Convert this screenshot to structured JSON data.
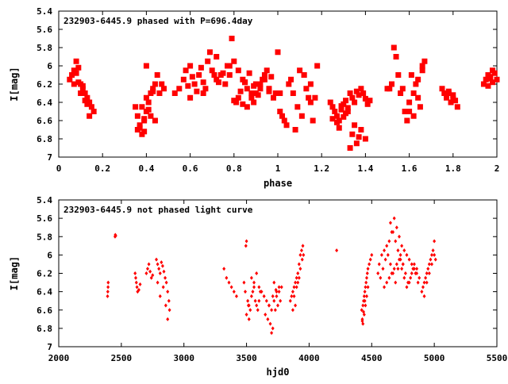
{
  "chart_data": [
    {
      "type": "scatter",
      "title": "232903-6445.9 phased with P=696.4day",
      "xlabel": "phase",
      "ylabel": "I[mag]",
      "xlim": [
        0,
        2
      ],
      "ylim": [
        7,
        5.4
      ],
      "y_inverted": true,
      "xticks": [
        0,
        0.2,
        0.4,
        0.6,
        0.8,
        1,
        1.2,
        1.4,
        1.6,
        1.8,
        2
      ],
      "xtick_labels": [
        "0",
        "0.2",
        "0.4",
        "0.6",
        "0.8",
        "1",
        "1.2",
        "1.4",
        "1.6",
        "1.8",
        "2"
      ],
      "yticks": [
        5.4,
        5.6,
        5.8,
        6,
        6.2,
        6.4,
        6.6,
        6.8,
        7
      ],
      "ytick_labels": [
        "5.4",
        "5.6",
        "5.8",
        "6",
        "6.2",
        "6.4",
        "6.6",
        "6.8",
        "7"
      ],
      "grid": false,
      "marker_color": "#ff0000",
      "marker": "filled-square",
      "series": [
        {
          "x": [
            0.05,
            0.06,
            0.07,
            0.08,
            0.09,
            0.1,
            0.11,
            0.12,
            0.13,
            0.14,
            0.15,
            0.16,
            0.08,
            0.1,
            0.12,
            0.14,
            0.07,
            0.09,
            0.11,
            0.13,
            0.35,
            0.36,
            0.37,
            0.38,
            0.39,
            0.4,
            0.41,
            0.42,
            0.43,
            0.44,
            0.45,
            0.36,
            0.38,
            0.4,
            0.42,
            0.44,
            0.37,
            0.39,
            0.41,
            0.43,
            0.4,
            0.46,
            0.47,
            0.48,
            0.39,
            0.53,
            0.55,
            0.57,
            0.58,
            0.6,
            0.62,
            0.64,
            0.66,
            0.68,
            0.7,
            0.72,
            0.74,
            0.76,
            0.78,
            0.6,
            0.63,
            0.66,
            0.69,
            0.72,
            0.75,
            0.59,
            0.61,
            0.65,
            0.67,
            0.71,
            0.73,
            0.77,
            0.8,
            0.82,
            0.84,
            0.86,
            0.88,
            0.9,
            0.92,
            0.94,
            0.96,
            0.98,
            0.81,
            0.83,
            0.85,
            0.87,
            0.89,
            0.91,
            0.93,
            0.95,
            0.97,
            0.79,
            0.8,
            0.84,
            0.88,
            0.92,
            0.78,
            0.82,
            0.86,
            0.9,
            0.94,
            0.99,
            0.96,
            0.85,
            0.89,
            1.0,
            1.01,
            1.02,
            1.03,
            1.05,
            1.07,
            1.09,
            1.1,
            1.12,
            1.13,
            1.14,
            1.15,
            1.16,
            1.04,
            1.08,
            1.11,
            1.06,
            1.01,
            1.15,
            1.17,
            1.18,
            1.12,
            1.24,
            1.25,
            1.26,
            1.27,
            1.28,
            1.29,
            1.3,
            1.31,
            1.32,
            1.25,
            1.27,
            1.29,
            1.31,
            1.33,
            1.34,
            1.35,
            1.36,
            1.37,
            1.38,
            1.39,
            1.4,
            1.41,
            1.42,
            1.34,
            1.36,
            1.38,
            1.4,
            1.33,
            1.35,
            1.37,
            1.28,
            1.3,
            1.32,
            1.5,
            1.52,
            1.53,
            1.54,
            1.55,
            1.56,
            1.58,
            1.6,
            1.62,
            1.63,
            1.64,
            1.65,
            1.66,
            1.67,
            1.6,
            1.62,
            1.64,
            1.59,
            1.61,
            1.57,
            1.51,
            1.66,
            1.75,
            1.76,
            1.77,
            1.78,
            1.79,
            1.8,
            1.81,
            1.82,
            1.78,
            1.8,
            1.94,
            1.95,
            1.96,
            1.97,
            1.98,
            1.99,
            2.0,
            1.96,
            1.98,
            1.97
          ],
          "y": [
            6.15,
            6.1,
            6.05,
            6.08,
            6.02,
            6.2,
            6.25,
            6.3,
            6.35,
            6.4,
            6.45,
            6.5,
            5.95,
            6.3,
            6.38,
            6.55,
            6.2,
            6.18,
            6.22,
            6.42,
            6.45,
            6.55,
            6.65,
            6.75,
            6.6,
            6.5,
            6.4,
            6.3,
            6.25,
            6.2,
            6.1,
            6.7,
            6.45,
            6.35,
            6.55,
            6.6,
            6.68,
            6.58,
            6.48,
            6.28,
            6.0,
            6.3,
            6.2,
            6.25,
            6.72,
            6.3,
            6.25,
            6.15,
            6.05,
            6.0,
            6.2,
            6.1,
            6.3,
            5.95,
            6.05,
            5.9,
            6.1,
            6.2,
            6.0,
            6.35,
            6.28,
            6.18,
            5.85,
            6.15,
            6.08,
            6.22,
            6.12,
            6.02,
            6.25,
            6.1,
            6.18,
            6.0,
            5.95,
            6.05,
            6.15,
            6.25,
            6.35,
            6.3,
            6.2,
            6.1,
            6.25,
            6.35,
            6.4,
            6.28,
            6.18,
            6.08,
            6.22,
            6.32,
            6.15,
            6.05,
            6.12,
            5.7,
            6.38,
            6.42,
            6.3,
            6.25,
            6.1,
            6.35,
            6.45,
            6.2,
            6.15,
            6.3,
            6.28,
            6.18,
            6.4,
            5.85,
            6.5,
            6.55,
            6.6,
            6.2,
            6.3,
            6.45,
            6.05,
            6.1,
            6.25,
            6.35,
            6.4,
            6.6,
            6.65,
            6.7,
            6.55,
            6.15,
            6.3,
            6.2,
            6.35,
            6.0,
            6.1,
            6.4,
            6.45,
            6.5,
            6.55,
            6.6,
            6.48,
            6.42,
            6.52,
            6.46,
            6.58,
            6.62,
            6.44,
            6.38,
            6.3,
            6.35,
            6.4,
            6.28,
            6.32,
            6.25,
            6.3,
            6.36,
            6.42,
            6.38,
            6.75,
            6.85,
            6.7,
            6.8,
            6.9,
            6.65,
            6.78,
            6.68,
            6.56,
            6.5,
            6.25,
            6.2,
            5.8,
            5.9,
            6.1,
            6.3,
            6.5,
            6.4,
            6.3,
            6.2,
            6.35,
            6.45,
            6.0,
            5.95,
            6.5,
            6.55,
            6.15,
            6.6,
            6.1,
            6.25,
            6.25,
            6.05,
            6.25,
            6.3,
            6.35,
            6.28,
            6.4,
            6.32,
            6.38,
            6.45,
            6.3,
            6.36,
            6.2,
            6.15,
            6.1,
            6.12,
            6.18,
            6.08,
            6.15,
            6.22,
            6.05,
            6.14
          ]
        }
      ]
    },
    {
      "type": "scatter",
      "title": "232903-6445.9 not phased light curve",
      "xlabel": "hjd0",
      "ylabel": "I[mag]",
      "xlim": [
        2000,
        5500
      ],
      "ylim": [
        7,
        5.4
      ],
      "y_inverted": true,
      "xticks": [
        2000,
        2500,
        3000,
        3500,
        4000,
        4500,
        5000,
        5500
      ],
      "xtick_labels": [
        "2000",
        "2500",
        "3000",
        "3500",
        "4000",
        "4500",
        "5000",
        "5500"
      ],
      "yticks": [
        5.4,
        5.6,
        5.8,
        6,
        6.2,
        6.4,
        6.6,
        6.8,
        7
      ],
      "ytick_labels": [
        "5.4",
        "5.6",
        "5.8",
        "6",
        "6.2",
        "6.4",
        "6.6",
        "6.8",
        "7"
      ],
      "grid": false,
      "marker_color": "#ff0000",
      "marker": "small-diamond",
      "series": [
        {
          "x": [
            2390,
            2392,
            2394,
            2395,
            2450,
            2452,
            2455,
            2610,
            2615,
            2620,
            2625,
            2630,
            2640,
            2650,
            2700,
            2710,
            2720,
            2730,
            2740,
            2750,
            2780,
            2790,
            2800,
            2810,
            2820,
            2830,
            2840,
            2850,
            2860,
            2870,
            2880,
            2885,
            2790,
            2810,
            2835,
            2855,
            2870,
            3320,
            3340,
            3360,
            3380,
            3400,
            3420,
            3480,
            3490,
            3500,
            3510,
            3520,
            3530,
            3540,
            3550,
            3560,
            3570,
            3580,
            3590,
            3600,
            3610,
            3500,
            3520,
            3540,
            3560,
            3580,
            3600,
            3495,
            3515,
            3620,
            3640,
            3660,
            3680,
            3700,
            3720,
            3740,
            3760,
            3780,
            3650,
            3670,
            3690,
            3710,
            3730,
            3750,
            3770,
            3700,
            3720,
            3740,
            3760,
            3680,
            3710,
            3735,
            3850,
            3860,
            3870,
            3880,
            3890,
            3900,
            3910,
            3920,
            3930,
            3940,
            3950,
            3870,
            3890,
            3910,
            3930,
            3945,
            3955,
            3880,
            3900,
            3920,
            4220,
            4420,
            4425,
            4430,
            4435,
            4440,
            4445,
            4450,
            4455,
            4460,
            4465,
            4470,
            4480,
            4490,
            4500,
            4430,
            4440,
            4450,
            4460,
            4470,
            4425,
            4435,
            4445,
            4550,
            4560,
            4580,
            4600,
            4620,
            4640,
            4660,
            4680,
            4700,
            4720,
            4740,
            4760,
            4780,
            4800,
            4820,
            4840,
            4860,
            4880,
            4570,
            4590,
            4610,
            4630,
            4650,
            4670,
            4690,
            4710,
            4730,
            4750,
            4770,
            4790,
            4810,
            4830,
            4850,
            4870,
            4600,
            4620,
            4640,
            4660,
            4680,
            4700,
            4720,
            4740,
            4760,
            4780,
            4800,
            4820,
            4840,
            4860,
            4650,
            4670,
            4690,
            4710,
            4730,
            4750,
            4900,
            4910,
            4920,
            4930,
            4940,
            4950,
            4960,
            4970,
            4980,
            4990,
            5000,
            5010,
            4920,
            4940,
            4960,
            4980,
            5000
          ],
          "y": [
            6.45,
            6.4,
            6.35,
            6.3,
            5.8,
            5.78,
            5.79,
            6.2,
            6.25,
            6.3,
            6.35,
            6.4,
            6.38,
            6.32,
            6.2,
            6.15,
            6.1,
            6.18,
            6.25,
            6.22,
            6.05,
            6.1,
            6.15,
            6.2,
            6.08,
            6.12,
            6.18,
            6.25,
            6.3,
            6.4,
            6.5,
            6.6,
            6.3,
            6.45,
            6.35,
            6.55,
            6.7,
            6.15,
            6.25,
            6.3,
            6.35,
            6.4,
            6.45,
            6.3,
            6.4,
            5.85,
            6.5,
            6.55,
            6.6,
            6.45,
            6.4,
            6.35,
            6.5,
            6.55,
            6.6,
            6.5,
            6.4,
            6.65,
            6.7,
            6.25,
            6.3,
            6.2,
            6.35,
            5.9,
            6.55,
            6.4,
            6.45,
            6.5,
            6.55,
            6.6,
            6.5,
            6.45,
            6.4,
            6.35,
            6.65,
            6.7,
            6.75,
            6.8,
            6.6,
            6.55,
            6.5,
            6.85,
            6.3,
            6.4,
            6.35,
            6.55,
            6.45,
            6.38,
            6.5,
            6.45,
            6.4,
            6.35,
            6.3,
            6.25,
            6.2,
            6.1,
            6.0,
            5.95,
            5.9,
            6.6,
            6.55,
            6.3,
            6.15,
            6.05,
            6.0,
            6.45,
            6.35,
            6.25,
            5.95,
            6.6,
            6.7,
            6.75,
            6.5,
            6.45,
            6.4,
            6.35,
            6.3,
            6.25,
            6.2,
            6.15,
            6.1,
            6.05,
            6.0,
            6.55,
            6.65,
            6.55,
            6.45,
            6.35,
            6.72,
            6.62,
            6.5,
            6.2,
            6.1,
            6.0,
            5.95,
            5.9,
            5.85,
            5.75,
            5.6,
            5.7,
            5.8,
            5.9,
            5.95,
            6.0,
            6.05,
            6.1,
            6.15,
            6.2,
            6.25,
            6.25,
            6.15,
            6.05,
            6.0,
            6.1,
            6.2,
            6.3,
            6.15,
            6.05,
            6.1,
            6.2,
            6.3,
            6.25,
            6.15,
            6.2,
            6.3,
            6.35,
            6.3,
            6.25,
            6.2,
            6.15,
            6.1,
            6.05,
            6.15,
            6.25,
            6.35,
            6.3,
            6.2,
            6.1,
            6.15,
            5.65,
            5.75,
            5.85,
            5.95,
            6.0,
            6.1,
            6.4,
            6.35,
            6.3,
            6.25,
            6.2,
            6.15,
            6.1,
            6.05,
            6.0,
            5.95,
            5.85,
            6.05,
            6.45,
            6.3,
            6.2,
            6.1,
            6.0
          ]
        }
      ]
    }
  ]
}
